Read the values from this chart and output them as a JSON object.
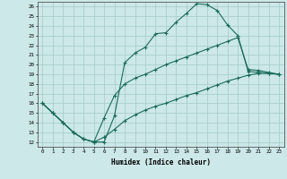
{
  "xlabel": "Humidex (Indice chaleur)",
  "bg_color": "#cce8e8",
  "grid_color": "#aacece",
  "line_color": "#1a6b5a",
  "xlim": [
    -0.5,
    23.5
  ],
  "ylim": [
    11.5,
    26.5
  ],
  "xticks": [
    0,
    1,
    2,
    3,
    4,
    5,
    6,
    7,
    8,
    9,
    10,
    11,
    12,
    13,
    14,
    15,
    16,
    17,
    18,
    19,
    20,
    21,
    22,
    23
  ],
  "yticks": [
    12,
    13,
    14,
    15,
    16,
    17,
    18,
    19,
    20,
    21,
    22,
    23,
    24,
    25,
    26
  ],
  "curve1_x": [
    0,
    1,
    2,
    3,
    4,
    5,
    6,
    7,
    8,
    9,
    10,
    11,
    12,
    13,
    14,
    15,
    16,
    17,
    18,
    19,
    20,
    21,
    22,
    23
  ],
  "curve1_y": [
    16.0,
    15.0,
    14.0,
    13.0,
    12.3,
    12.0,
    12.0,
    14.7,
    20.2,
    21.2,
    21.8,
    23.2,
    23.3,
    24.4,
    25.3,
    26.3,
    26.2,
    25.6,
    24.1,
    23.0,
    19.3,
    19.2,
    19.1,
    19.0
  ],
  "curve2_x": [
    0,
    1,
    2,
    3,
    4,
    5,
    6,
    7,
    8,
    9,
    10,
    11,
    12,
    13,
    14,
    15,
    16,
    17,
    18,
    19,
    20,
    21,
    22,
    23
  ],
  "curve2_y": [
    16.0,
    15.0,
    14.0,
    13.0,
    12.3,
    12.0,
    14.5,
    16.8,
    18.0,
    18.6,
    19.0,
    19.5,
    20.0,
    20.4,
    20.8,
    21.2,
    21.6,
    22.0,
    22.4,
    22.8,
    19.5,
    19.4,
    19.2,
    19.0
  ],
  "curve3_x": [
    0,
    1,
    2,
    3,
    4,
    5,
    6,
    7,
    8,
    9,
    10,
    11,
    12,
    13,
    14,
    15,
    16,
    17,
    18,
    19,
    20,
    21,
    22,
    23
  ],
  "curve3_y": [
    16.0,
    15.0,
    14.0,
    13.0,
    12.3,
    12.0,
    12.5,
    13.3,
    14.2,
    14.8,
    15.3,
    15.7,
    16.0,
    16.4,
    16.8,
    17.1,
    17.5,
    17.9,
    18.3,
    18.6,
    18.9,
    19.1,
    19.1,
    19.0
  ]
}
